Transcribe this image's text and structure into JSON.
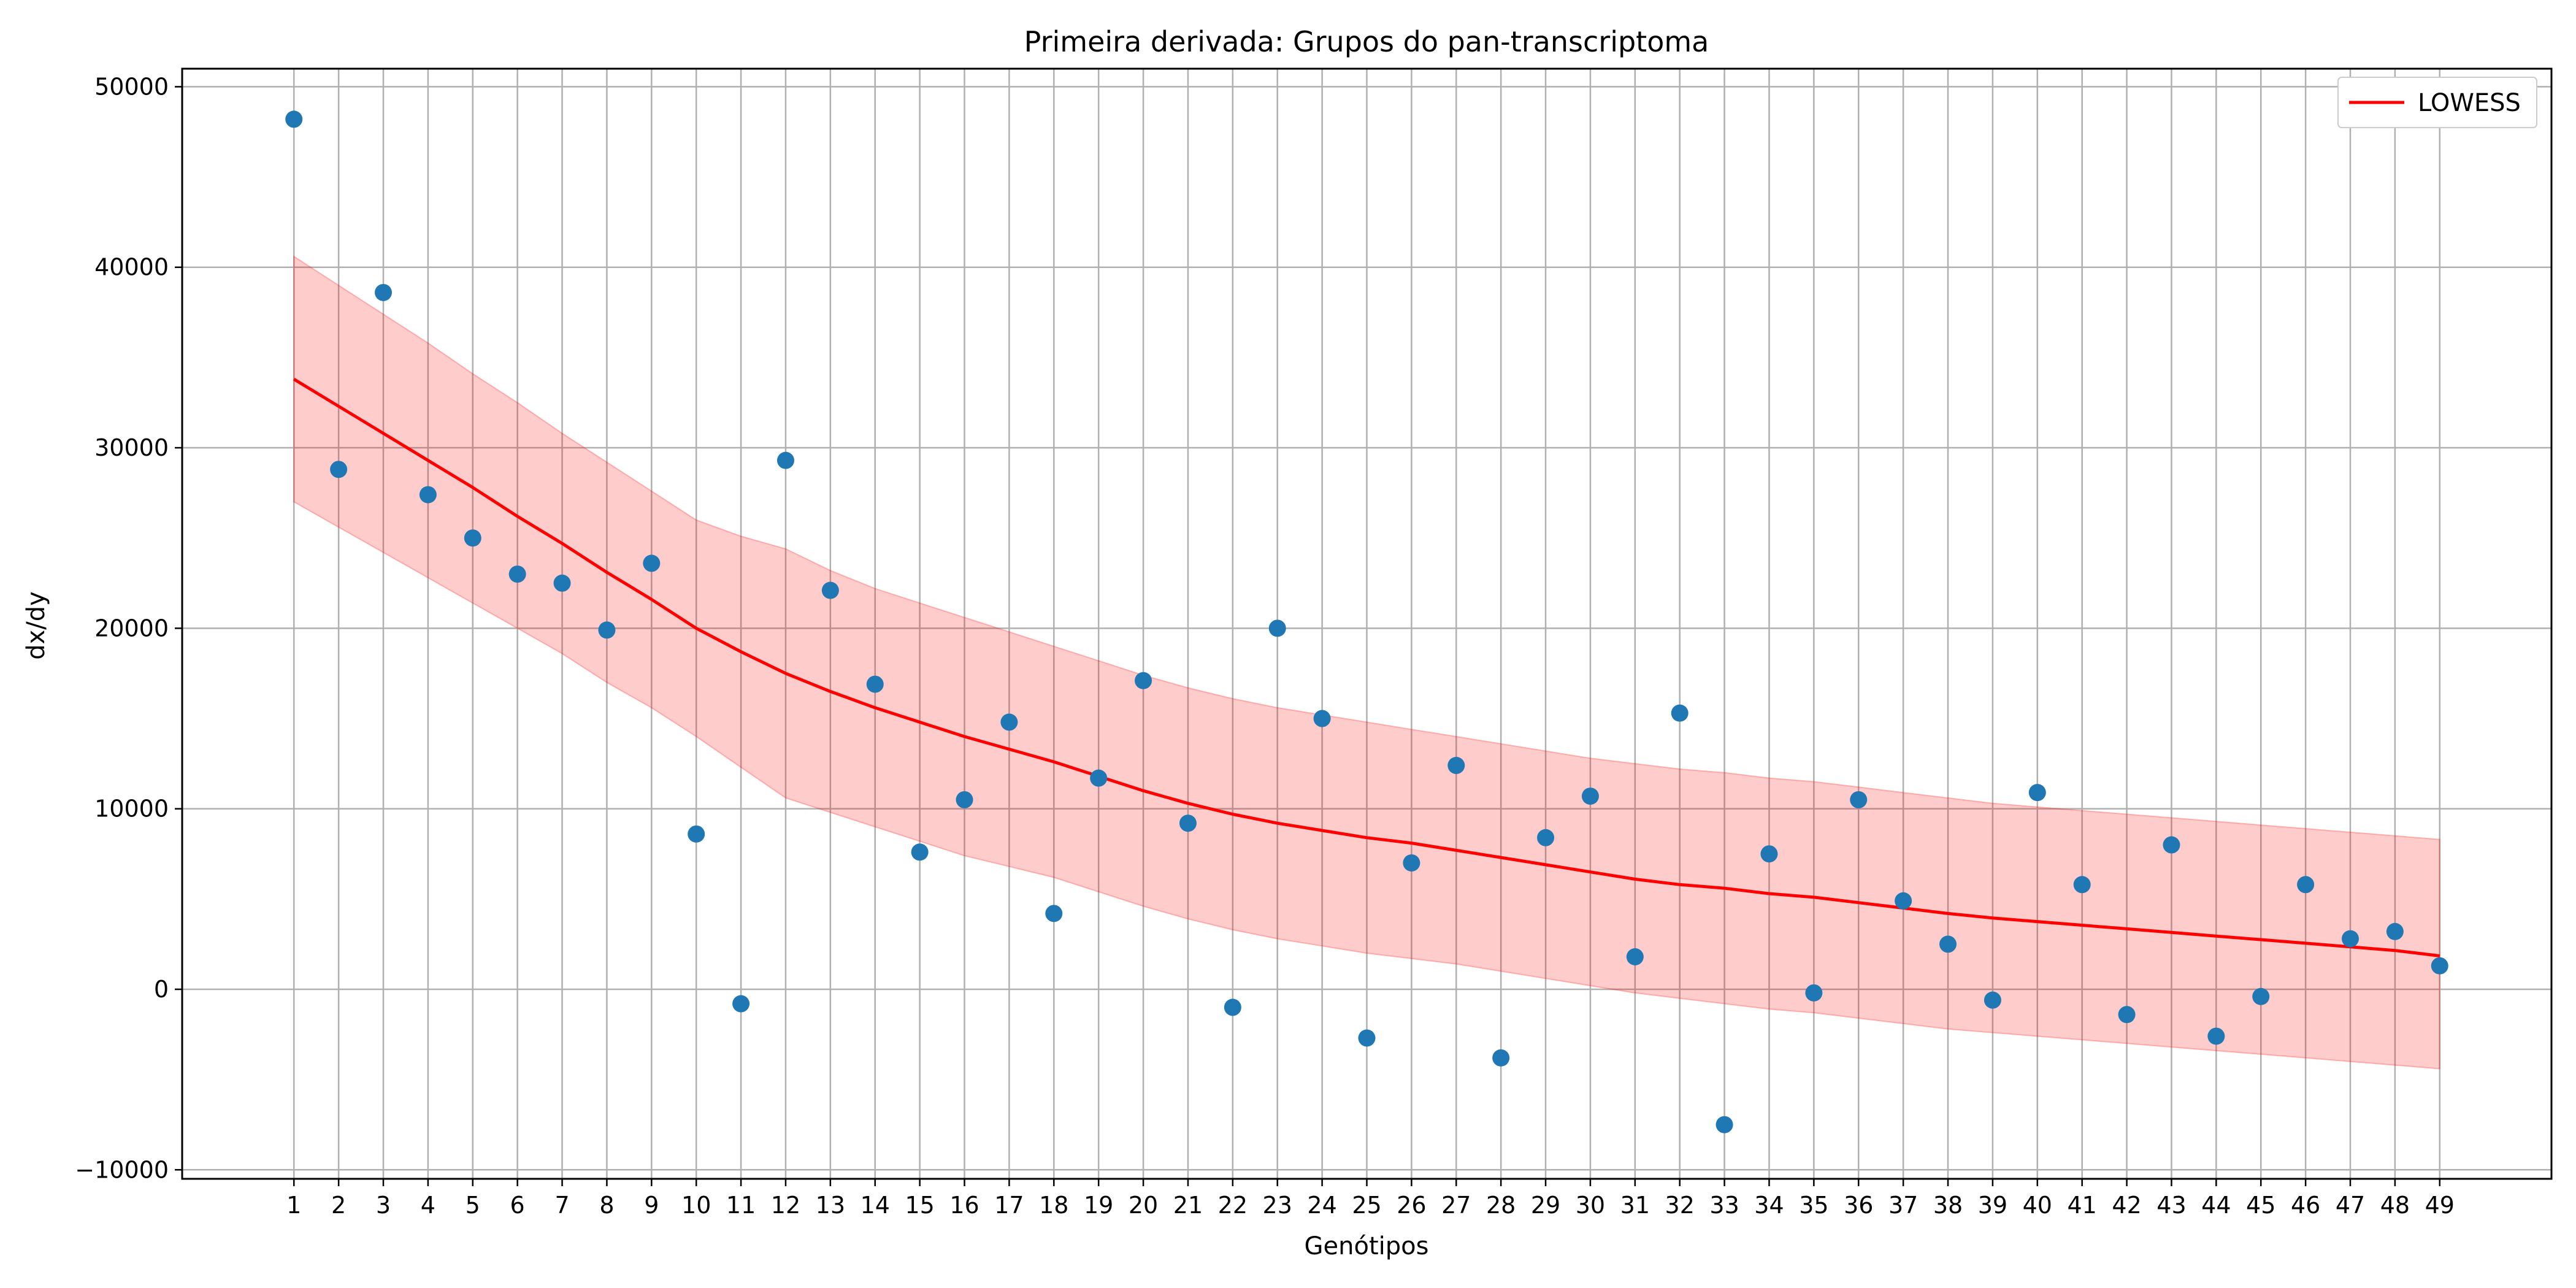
{
  "chart_data": {
    "type": "scatter",
    "title": "Primeira derivada: Grupos do pan-transcriptoma",
    "xlabel": "Genótipos",
    "ylabel": "dx/dy",
    "xlim": [
      -1.5,
      51.5
    ],
    "ylim": [
      -10500,
      51000
    ],
    "x_ticks": [
      1,
      2,
      3,
      4,
      5,
      6,
      7,
      8,
      9,
      10,
      11,
      12,
      13,
      14,
      15,
      16,
      17,
      18,
      19,
      20,
      21,
      22,
      23,
      24,
      25,
      26,
      27,
      28,
      29,
      30,
      31,
      32,
      33,
      34,
      35,
      36,
      37,
      38,
      39,
      40,
      41,
      42,
      43,
      44,
      45,
      46,
      47,
      48,
      49
    ],
    "y_ticks": [
      -10000,
      0,
      10000,
      20000,
      30000,
      40000,
      50000
    ],
    "grid": true,
    "legend_position": "top-right",
    "colors": {
      "points": "#1f77b4",
      "lowess": "#ff0000",
      "band": "#ff0000"
    },
    "x": [
      1,
      2,
      3,
      4,
      5,
      6,
      7,
      8,
      9,
      10,
      11,
      12,
      13,
      14,
      15,
      16,
      17,
      18,
      19,
      20,
      21,
      22,
      23,
      24,
      25,
      26,
      27,
      28,
      29,
      30,
      31,
      32,
      33,
      34,
      35,
      36,
      37,
      38,
      39,
      40,
      41,
      42,
      43,
      44,
      45,
      46,
      47,
      48,
      49
    ],
    "points": [
      48200,
      28800,
      38600,
      27400,
      25000,
      23000,
      22500,
      19900,
      23600,
      8600,
      -800,
      29300,
      22100,
      16900,
      7600,
      10500,
      14800,
      4200,
      11700,
      17100,
      9200,
      -1000,
      20000,
      15000,
      -2700,
      7000,
      12400,
      -3800,
      8400,
      10700,
      1800,
      15300,
      -7500,
      7500,
      -200,
      10500,
      4900,
      2500,
      -600,
      10900,
      5800,
      -1400,
      8000,
      -2600,
      -400,
      5800,
      2800,
      3200,
      1300
    ],
    "series": [
      {
        "name": "LOWESS",
        "values": [
          33800,
          32300,
          30800,
          29300,
          27800,
          26200,
          24700,
          23100,
          21600,
          20000,
          18700,
          17500,
          16500,
          15600,
          14800,
          14000,
          13300,
          12600,
          11800,
          11000,
          10300,
          9700,
          9200,
          8800,
          8400,
          8100,
          7700,
          7300,
          6900,
          6500,
          6100,
          5800,
          5600,
          5300,
          5100,
          4800,
          4500,
          4200,
          3950,
          3750,
          3550,
          3350,
          3150,
          2950,
          2750,
          2550,
          2350,
          2150,
          1850
        ]
      }
    ],
    "band": {
      "upper": [
        40600,
        39000,
        37400,
        35800,
        34100,
        32500,
        30800,
        29200,
        27600,
        26000,
        25100,
        24400,
        23200,
        22200,
        21400,
        20600,
        19800,
        19000,
        18200,
        17400,
        16700,
        16100,
        15600,
        15200,
        14800,
        14400,
        14000,
        13600,
        13200,
        12800,
        12500,
        12200,
        12000,
        11700,
        11500,
        11200,
        10900,
        10600,
        10300,
        10100,
        9900,
        9700,
        9500,
        9300,
        9100,
        8900,
        8700,
        8500,
        8300
      ],
      "lower": [
        27000,
        25600,
        24200,
        22800,
        21400,
        20000,
        18600,
        17000,
        15600,
        14000,
        12300,
        10600,
        9800,
        9000,
        8200,
        7400,
        6800,
        6200,
        5400,
        4600,
        3900,
        3300,
        2800,
        2400,
        2000,
        1700,
        1400,
        1000,
        600,
        200,
        -200,
        -500,
        -800,
        -1100,
        -1300,
        -1600,
        -1900,
        -2200,
        -2400,
        -2600,
        -2800,
        -3000,
        -3200,
        -3400,
        -3600,
        -3800,
        -4000,
        -4200,
        -4400
      ]
    },
    "legend": [
      {
        "label": "LOWESS",
        "type": "line"
      }
    ]
  }
}
